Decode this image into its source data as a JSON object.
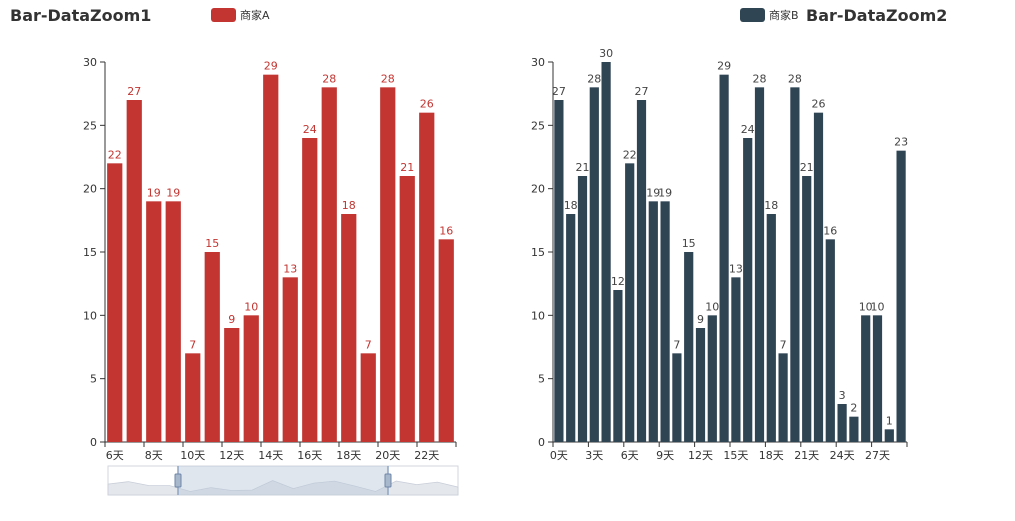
{
  "chart_data": [
    {
      "type": "bar",
      "title": "Bar-DataZoom1",
      "legend": "商家A",
      "legend_position": "top",
      "color": "#c23531",
      "categories": [
        "6天",
        "7天",
        "8天",
        "9天",
        "10天",
        "11天",
        "12天",
        "13天",
        "14天",
        "15天",
        "16天",
        "17天",
        "18天",
        "19天",
        "20天",
        "21天",
        "22天",
        "23天"
      ],
      "x_tick_labels": [
        "6天",
        "8天",
        "10天",
        "12天",
        "14天",
        "16天",
        "18天",
        "20天",
        "22天"
      ],
      "values": [
        22,
        27,
        19,
        19,
        7,
        15,
        9,
        10,
        29,
        13,
        24,
        28,
        18,
        7,
        28,
        21,
        26,
        16
      ],
      "ylim": [
        0,
        30
      ],
      "y_ticks": [
        0,
        5,
        10,
        15,
        20,
        25,
        30
      ],
      "data_zoom": {
        "type": "slider",
        "start_percent": 20,
        "end_percent": 80
      }
    },
    {
      "type": "bar",
      "title": "Bar-DataZoom2",
      "legend": "商家B",
      "legend_position": "top-right",
      "color": "#2f4554",
      "categories": [
        "0天",
        "1天",
        "2天",
        "3天",
        "4天",
        "5天",
        "6天",
        "7天",
        "8天",
        "9天",
        "10天",
        "11天",
        "12天",
        "13天",
        "14天",
        "15天",
        "16天",
        "17天",
        "18天",
        "19天",
        "20天",
        "21天",
        "22天",
        "23天",
        "24天",
        "25天",
        "26天",
        "27天",
        "28天",
        "29天"
      ],
      "x_tick_labels": [
        "0天",
        "3天",
        "6天",
        "9天",
        "12天",
        "15天",
        "18天",
        "21天",
        "24天",
        "27天"
      ],
      "values": [
        27,
        18,
        21,
        28,
        30,
        12,
        22,
        27,
        19,
        19,
        7,
        15,
        9,
        10,
        29,
        13,
        24,
        28,
        18,
        7,
        28,
        21,
        26,
        16,
        3,
        2,
        10,
        10,
        1,
        23
      ],
      "ylim": [
        0,
        30
      ],
      "y_ticks": [
        0,
        5,
        10,
        15,
        20,
        25,
        30
      ]
    }
  ]
}
